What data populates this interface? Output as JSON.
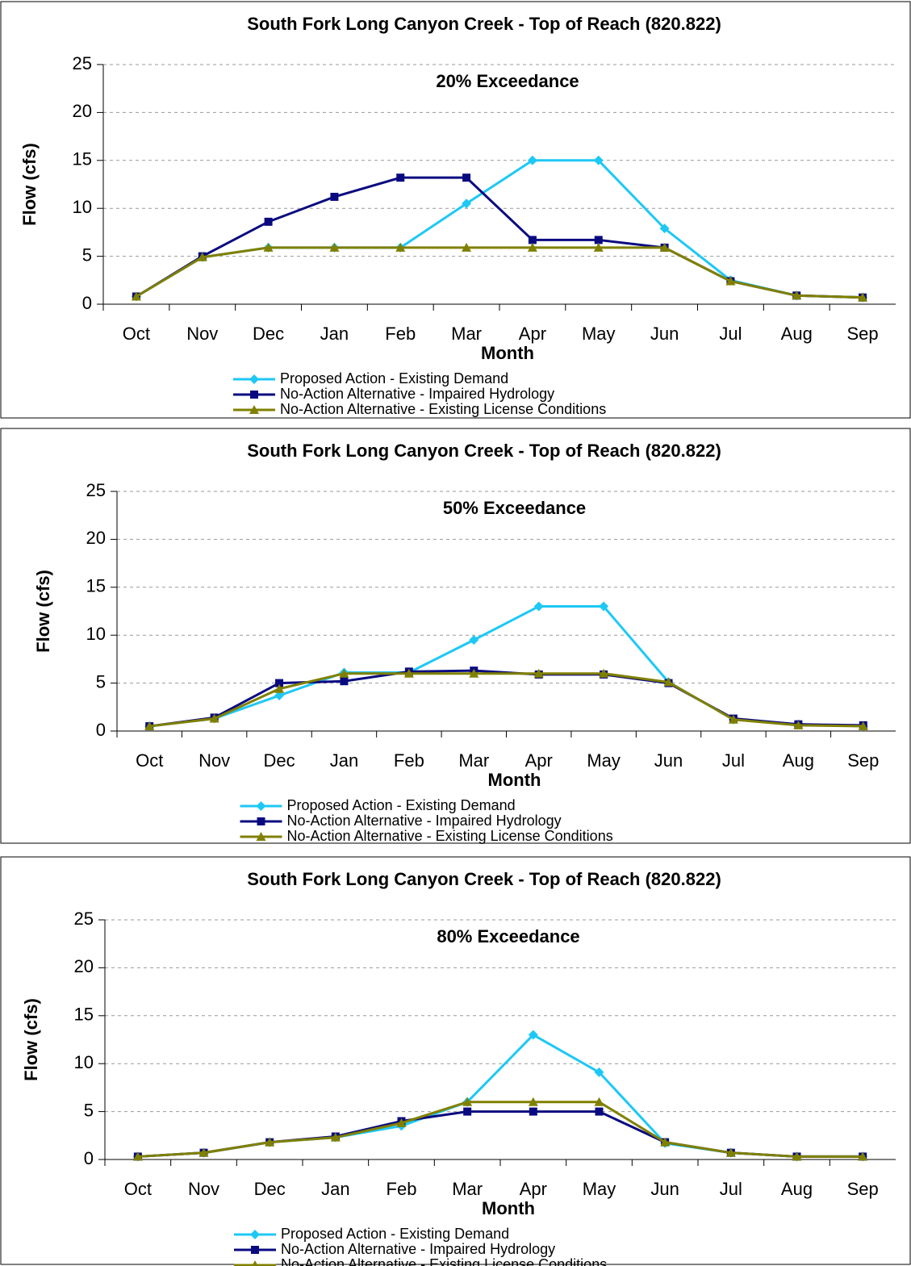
{
  "chart_data": [
    {
      "type": "line",
      "title": "South Fork Long Canyon Creek - Top of Reach (820.822)",
      "subtitle": "20% Exceedance",
      "xlabel": "Month",
      "ylabel": "Flow (cfs)",
      "categories": [
        "Oct",
        "Nov",
        "Dec",
        "Jan",
        "Feb",
        "Mar",
        "Apr",
        "May",
        "Jun",
        "Jul",
        "Aug",
        "Sep"
      ],
      "ylim": [
        0,
        25
      ],
      "yticks": [
        0,
        5,
        10,
        15,
        20,
        25
      ],
      "grid": true,
      "series": [
        {
          "name": "Proposed Action - Existing Demand",
          "color": "#1ec8f5",
          "marker": "diamond",
          "values": [
            0.8,
            4.9,
            5.9,
            5.9,
            5.9,
            10.5,
            15,
            15,
            7.9,
            2.5,
            0.9,
            0.7
          ]
        },
        {
          "name": "No-Action Alternative - Impaired Hydrology",
          "color": "#0a0a80",
          "marker": "square",
          "values": [
            0.8,
            5.0,
            8.6,
            11.2,
            13.2,
            13.2,
            6.7,
            6.7,
            5.9,
            2.4,
            0.9,
            0.7
          ]
        },
        {
          "name": "No-Action Alternative - Existing License Conditions",
          "color": "#808000",
          "marker": "triangle",
          "values": [
            0.8,
            4.9,
            5.9,
            5.9,
            5.9,
            5.9,
            5.9,
            5.9,
            5.9,
            2.4,
            0.9,
            0.7
          ]
        }
      ]
    },
    {
      "type": "line",
      "title": "South Fork Long Canyon Creek - Top of Reach (820.822)",
      "subtitle": "50% Exceedance",
      "xlabel": "Month",
      "ylabel": "Flow (cfs)",
      "categories": [
        "Oct",
        "Nov",
        "Dec",
        "Jan",
        "Feb",
        "Mar",
        "Apr",
        "May",
        "Jun",
        "Jul",
        "Aug",
        "Sep"
      ],
      "ylim": [
        0,
        25
      ],
      "yticks": [
        0,
        5,
        10,
        15,
        20,
        25
      ],
      "grid": true,
      "series": [
        {
          "name": "Proposed Action - Existing Demand",
          "color": "#1ec8f5",
          "marker": "diamond",
          "values": [
            0.5,
            1.3,
            3.7,
            6.1,
            6.1,
            9.5,
            13,
            13,
            5.1,
            1.2,
            0.7,
            0.5
          ]
        },
        {
          "name": "No-Action Alternative - Impaired Hydrology",
          "color": "#0a0a80",
          "marker": "square",
          "values": [
            0.5,
            1.4,
            5.0,
            5.2,
            6.2,
            6.3,
            5.9,
            5.9,
            5.0,
            1.3,
            0.7,
            0.6
          ]
        },
        {
          "name": "No-Action Alternative - Existing License Conditions",
          "color": "#808000",
          "marker": "triangle",
          "values": [
            0.5,
            1.3,
            4.4,
            6.0,
            6.0,
            6.0,
            6.0,
            6.0,
            5.1,
            1.2,
            0.6,
            0.5
          ]
        }
      ]
    },
    {
      "type": "line",
      "title": "South Fork Long Canyon Creek - Top of Reach (820.822)",
      "subtitle": "80% Exceedance",
      "xlabel": "Month",
      "ylabel": "Flow (cfs)",
      "categories": [
        "Oct",
        "Nov",
        "Dec",
        "Jan",
        "Feb",
        "Mar",
        "Apr",
        "May",
        "Jun",
        "Jul",
        "Aug",
        "Sep"
      ],
      "ylim": [
        0,
        25
      ],
      "yticks": [
        0,
        5,
        10,
        15,
        20,
        25
      ],
      "grid": true,
      "series": [
        {
          "name": "Proposed Action - Existing Demand",
          "color": "#1ec8f5",
          "marker": "diamond",
          "values": [
            0.3,
            0.7,
            1.8,
            2.3,
            3.5,
            6.0,
            13.0,
            9.1,
            1.7,
            0.7,
            0.3,
            0.3
          ]
        },
        {
          "name": "No-Action Alternative - Impaired Hydrology",
          "color": "#0a0a80",
          "marker": "square",
          "values": [
            0.3,
            0.7,
            1.8,
            2.4,
            4.0,
            5.0,
            5.0,
            5.0,
            1.8,
            0.7,
            0.3,
            0.3
          ]
        },
        {
          "name": "No-Action Alternative - Existing License Conditions",
          "color": "#808000",
          "marker": "triangle",
          "values": [
            0.3,
            0.7,
            1.8,
            2.3,
            3.8,
            6.0,
            6.0,
            6.0,
            1.8,
            0.7,
            0.3,
            0.3
          ]
        }
      ]
    }
  ]
}
